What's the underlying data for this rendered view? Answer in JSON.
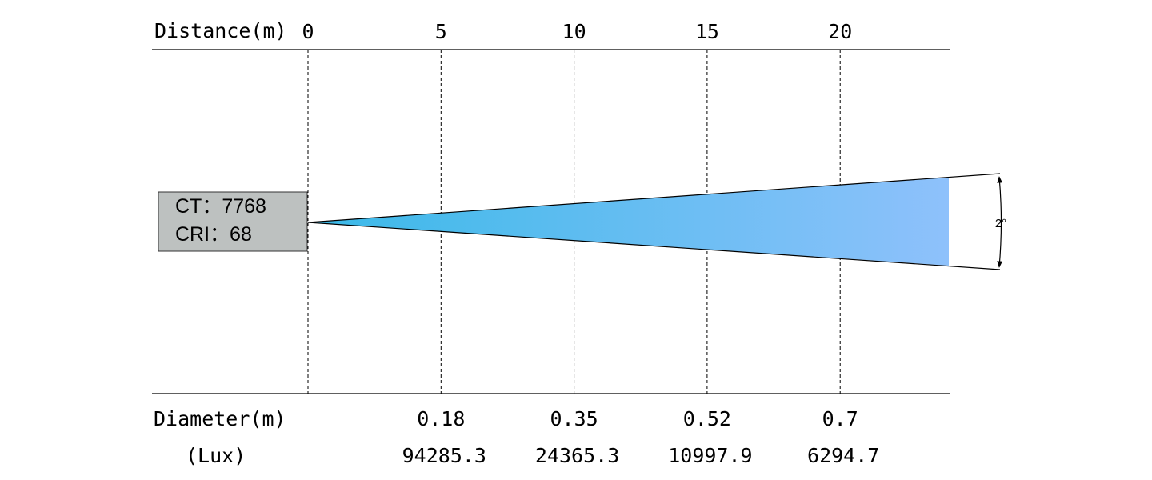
{
  "header": {
    "distance_label": "Distance(m)"
  },
  "footer": {
    "diameter_label": "Diameter(m)",
    "lux_label": "(Lux)"
  },
  "info_box": {
    "ct_line": "CT：7768",
    "cri_line": "CRI：68"
  },
  "beam": {
    "angle_label": "2°",
    "color_start": "#3ab9e8",
    "color_end": "#8ec1fb"
  },
  "chart_data": {
    "type": "table",
    "distance_ticks": [
      "0",
      "5",
      "10",
      "15",
      "20"
    ],
    "columns": [
      {
        "distance": "5",
        "diameter": "0.18",
        "lux": "94285.3"
      },
      {
        "distance": "10",
        "diameter": "0.35",
        "lux": "24365.3"
      },
      {
        "distance": "15",
        "diameter": "0.52",
        "lux": "10997.9"
      },
      {
        "distance": "20",
        "diameter": "0.7",
        "lux": "6294.7"
      }
    ]
  }
}
